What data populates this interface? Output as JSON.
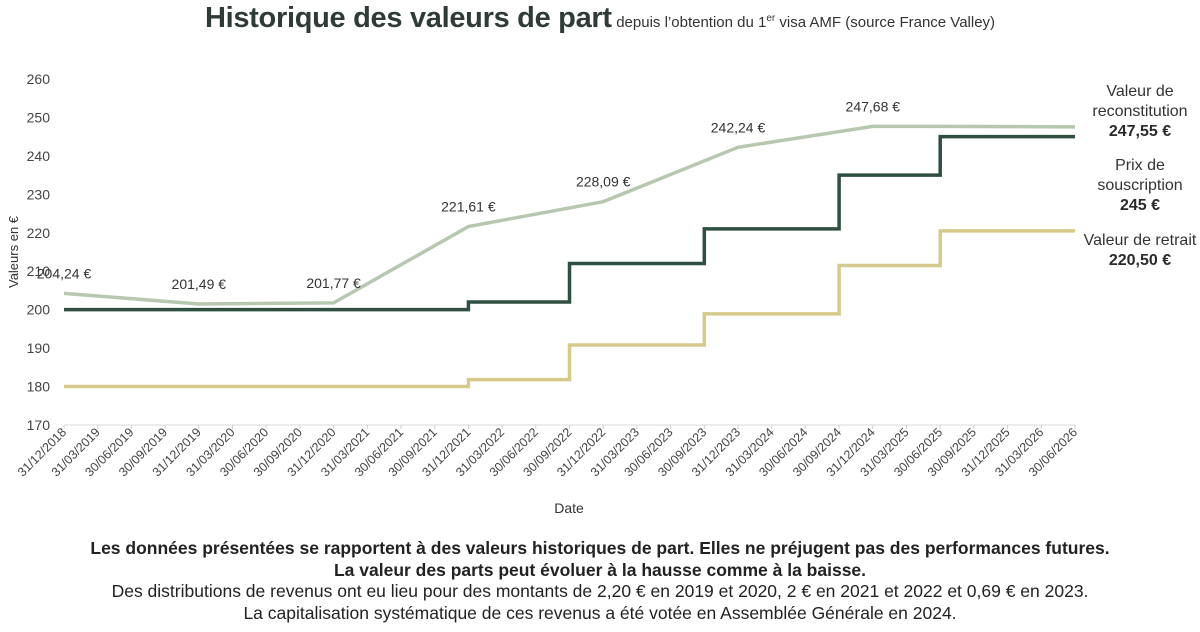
{
  "title": {
    "main": "Historique des valeurs de part",
    "sub_prefix": "depuis l’obtention du 1",
    "sub_sup": "er",
    "sub_suffix": " visa AMF (source France Valley)"
  },
  "legend": [
    {
      "label": "Valeur de reconstitution",
      "value": "247,55 €"
    },
    {
      "label": "Prix de souscription",
      "value": "245 €"
    },
    {
      "label": "Valeur de retrait",
      "value": "220,50 €"
    }
  ],
  "notes": {
    "line1": "Les données présentées se rapportent à des valeurs historiques de part. Elles ne préjugent pas des performances futures.",
    "line2": "La valeur des parts peut évoluer à la hausse comme à la baisse.",
    "line3": "Des distributions de revenus ont eu lieu pour des montants de 2,20 € en 2019 et 2020, 2 € en 2021 et 2022 et 0,69 € en 2023.",
    "line4": "La capitalisation systématique de ces revenus a été votée en Assemblée Générale en 2024."
  },
  "chart_data": {
    "type": "line",
    "xlabel": "Date",
    "ylabel": "Valeurs en €",
    "ylim": [
      170,
      260
    ],
    "yticks": [
      170,
      180,
      190,
      200,
      210,
      220,
      230,
      240,
      250,
      260
    ],
    "grid": false,
    "legend_position": "right",
    "xticks": [
      "31/12/2018",
      "31/03/2019",
      "30/06/2019",
      "30/09/2019",
      "31/12/2019",
      "31/03/2020",
      "30/06/2020",
      "30/09/2020",
      "31/12/2020",
      "31/03/2021",
      "30/06/2021",
      "30/09/2021",
      "31/12/2021",
      "31/03/2022",
      "30/06/2022",
      "30/09/2022",
      "31/12/2022",
      "31/03/2023",
      "30/06/2023",
      "30/09/2023",
      "31/12/2023",
      "31/03/2024",
      "30/06/2024",
      "30/09/2024",
      "31/12/2024",
      "31/03/2025",
      "30/06/2025",
      "30/09/2025",
      "31/12/2025",
      "31/03/2026",
      "30/06/2026"
    ],
    "series": [
      {
        "name": "Valeur de reconstitution",
        "color": "#b7c7b0",
        "step": false,
        "points": [
          [
            "31/12/2018",
            204.24
          ],
          [
            "31/12/2019",
            201.49
          ],
          [
            "31/12/2020",
            201.77
          ],
          [
            "31/12/2021",
            221.61
          ],
          [
            "31/12/2022",
            228.09
          ],
          [
            "31/12/2023",
            242.24
          ],
          [
            "31/12/2024",
            247.68
          ],
          [
            "30/06/2025",
            247.68
          ],
          [
            "30/06/2026",
            247.55
          ]
        ],
        "labels": [
          [
            "31/12/2018",
            "204,24 €"
          ],
          [
            "31/12/2019",
            "201,49 €"
          ],
          [
            "31/12/2020",
            "201,77 €"
          ],
          [
            "31/12/2021",
            "221,61 €"
          ],
          [
            "31/12/2022",
            "228,09 €"
          ],
          [
            "31/12/2023",
            "242,24 €"
          ],
          [
            "31/12/2024",
            "247,68 €"
          ]
        ]
      },
      {
        "name": "Prix de souscription",
        "color": "#2f4f40",
        "step": true,
        "points": [
          [
            "31/12/2018",
            200
          ],
          [
            "31/12/2021",
            202
          ],
          [
            "30/09/2022",
            212
          ],
          [
            "30/09/2023",
            221
          ],
          [
            "30/09/2024",
            235
          ],
          [
            "30/06/2025",
            245
          ],
          [
            "30/06/2026",
            245
          ]
        ]
      },
      {
        "name": "Valeur de retrait",
        "color": "#d5c98c",
        "step": true,
        "points": [
          [
            "31/12/2018",
            180
          ],
          [
            "31/12/2021",
            181.8
          ],
          [
            "30/09/2022",
            190.8
          ],
          [
            "30/09/2023",
            198.9
          ],
          [
            "30/09/2024",
            211.5
          ],
          [
            "30/06/2025",
            220.5
          ],
          [
            "30/06/2026",
            220.5
          ]
        ]
      }
    ]
  }
}
